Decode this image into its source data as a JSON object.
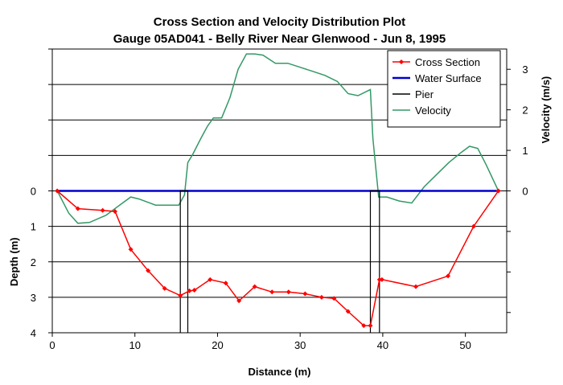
{
  "chart_data": {
    "type": "line",
    "title": "Cross Section and Velocity Distribution Plot",
    "subtitle": "Gauge 05AD041 - Belly River Near Glenwood - Jun 8, 1995",
    "xlabel": "Distance (m)",
    "ylabel": "Depth (m)",
    "y2label": "Velocity (m/s)",
    "xlim": [
      0,
      55
    ],
    "xticks": [
      "0",
      "10",
      "20",
      "30",
      "40",
      "50"
    ],
    "ylim_depth": [
      4,
      -4
    ],
    "yticks_depth": [
      "0",
      "1",
      "2",
      "3",
      "4"
    ],
    "ylim_velocity": [
      -3.5,
      3.5
    ],
    "yticks_velocity": [
      "0",
      "1",
      "2",
      "3"
    ],
    "grid": "horizontal",
    "legend_position": "top-right",
    "series": [
      {
        "name": "Cross Section",
        "color": "#ff0000",
        "axis": "depth",
        "marker": "diamond",
        "x": [
          0.6,
          3.1,
          6.1,
          7.6,
          9.5,
          11.6,
          13.6,
          15.5,
          16.6,
          17.2,
          19.1,
          21.0,
          22.6,
          24.5,
          26.6,
          28.6,
          30.6,
          32.6,
          34.1,
          35.8,
          37.7,
          38.5,
          39.6,
          39.9,
          44.0,
          47.9,
          51.0,
          54.0
        ],
        "y": [
          0,
          0.5,
          0.55,
          0.58,
          1.65,
          2.25,
          2.75,
          2.95,
          2.82,
          2.8,
          2.5,
          2.6,
          3.1,
          2.7,
          2.85,
          2.85,
          2.9,
          3.0,
          3.03,
          3.4,
          3.8,
          3.8,
          2.5,
          2.5,
          2.7,
          2.4,
          1.0,
          0
        ]
      },
      {
        "name": "Water Surface",
        "color": "#0000cc",
        "axis": "depth",
        "x": [
          0.6,
          54.0
        ],
        "y": [
          0,
          0
        ]
      },
      {
        "name": "Pier",
        "color": "#000000",
        "axis": "depth",
        "segments": [
          {
            "x": [
              15.5,
              15.5,
              16.4,
              16.4
            ],
            "y": [
              4,
              0,
              0,
              4
            ]
          },
          {
            "x": [
              38.5,
              38.5,
              39.6,
              39.6
            ],
            "y": [
              4,
              0,
              0,
              4
            ]
          }
        ]
      },
      {
        "name": "Velocity",
        "color": "#339966",
        "axis": "velocity",
        "x": [
          0.6,
          2.0,
          3.1,
          4.5,
          6.5,
          8.5,
          9.5,
          10.5,
          12.5,
          14.5,
          15.3,
          16.0,
          16.4,
          17.0,
          18.0,
          18.8,
          19.5,
          20.5,
          21.5,
          22.5,
          23.5,
          24.5,
          25.5,
          27.0,
          28.5,
          30.0,
          31.5,
          33.0,
          34.5,
          35.8,
          37.0,
          38.0,
          38.5,
          38.8,
          39.5,
          40.5,
          42.0,
          43.5,
          45.0,
          46.5,
          48.0,
          49.5,
          50.5,
          51.5,
          52.5,
          54.0
        ],
        "y": [
          0,
          -0.55,
          -0.8,
          -0.78,
          -0.6,
          -0.3,
          -0.15,
          -0.2,
          -0.35,
          -0.35,
          -0.35,
          -0.1,
          0.7,
          0.9,
          1.3,
          1.6,
          1.8,
          1.8,
          2.3,
          3.0,
          3.38,
          3.38,
          3.35,
          3.15,
          3.15,
          3.05,
          2.95,
          2.85,
          2.7,
          2.4,
          2.35,
          2.45,
          2.5,
          1.3,
          -0.15,
          -0.15,
          -0.25,
          -0.3,
          0.1,
          0.4,
          0.7,
          0.95,
          1.1,
          1.05,
          0.65,
          0
        ]
      }
    ]
  }
}
